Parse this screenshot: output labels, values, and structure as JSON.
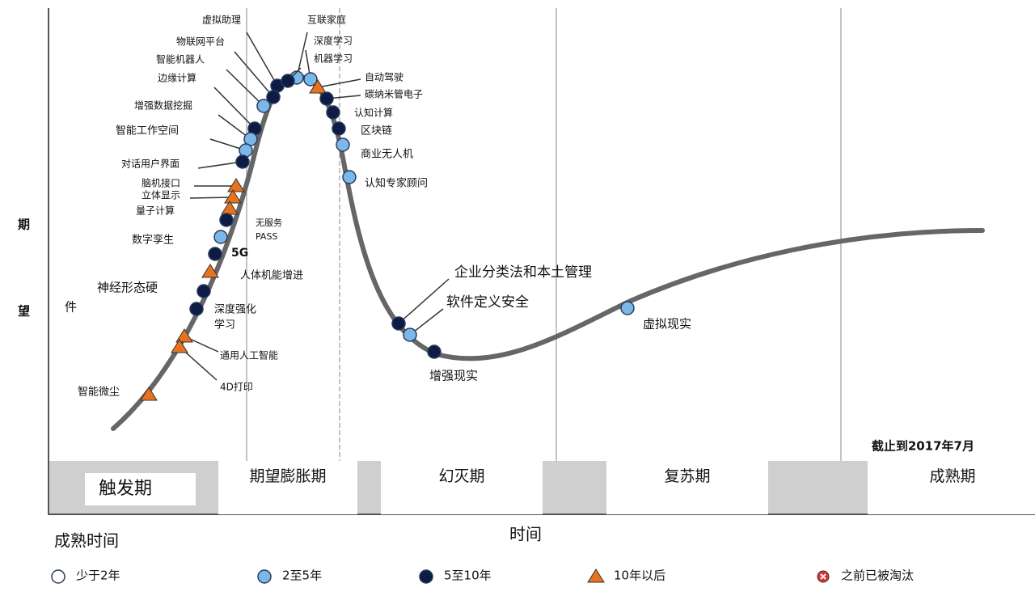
{
  "y_axis_label": [
    "期",
    "望"
  ],
  "x_axis_label": "时间",
  "note": "截止到2017年7月",
  "phases": [
    "触发期",
    "期望膨胀期",
    "幻灭期",
    "复苏期",
    "成熟期"
  ],
  "legend": {
    "title": "成熟时间",
    "items": [
      {
        "label": "少于2年",
        "color": "#ffffff",
        "shape": "circle"
      },
      {
        "label": "2至5年",
        "color": "#7ab8e8",
        "shape": "circle"
      },
      {
        "label": "5至10年",
        "color": "#0d1b45",
        "shape": "circle"
      },
      {
        "label": "10年以后",
        "color": "#e8731e",
        "shape": "triangle"
      },
      {
        "label": "之前已被淘汰",
        "color": "#e03030",
        "shape": "cross"
      }
    ]
  },
  "technologies": [
    {
      "lines": [
        "虚拟助理"
      ],
      "color": "#0d1b45",
      "shape": "circle"
    },
    {
      "lines": [
        "物联网平台"
      ],
      "color": "#0d1b45",
      "shape": "circle"
    },
    {
      "lines": [
        "智能机器人"
      ],
      "color": "#7ab8e8",
      "shape": "circle"
    },
    {
      "lines": [
        "边缘计算"
      ],
      "color": "#0d1b45",
      "shape": "circle"
    },
    {
      "lines": [
        "增强数据挖掘"
      ],
      "color": "#7ab8e8",
      "shape": "circle"
    },
    {
      "lines": [
        "智能工作空间"
      ],
      "color": "#7ab8e8",
      "shape": "circle"
    },
    {
      "lines": [
        "对话用户界面"
      ],
      "color": "#0d1b45",
      "shape": "circle"
    },
    {
      "lines": [
        "脑机接口"
      ],
      "color": "#e8731e",
      "shape": "triangle"
    },
    {
      "lines": [
        "立体显示"
      ],
      "color": "#e8731e",
      "shape": "triangle"
    },
    {
      "lines": [
        "量子计算"
      ],
      "color": "#e8731e",
      "shape": "triangle"
    },
    {
      "lines": [
        "数字孪生"
      ],
      "color": "#0d1b45",
      "shape": "circle"
    },
    {
      "lines": [
        "无服务",
        "PASS"
      ],
      "color": "#7ab8e8",
      "shape": "circle"
    },
    {
      "lines": [
        "5G"
      ],
      "color": "#0d1b45",
      "shape": "circle"
    },
    {
      "lines": [
        "人体机能增进"
      ],
      "color": "#e8731e",
      "shape": "triangle"
    },
    {
      "lines": [
        "神经形态硬",
        "件"
      ],
      "color": "#0d1b45",
      "shape": "circle"
    },
    {
      "lines": [
        "深度强化",
        "学习"
      ],
      "color": "#0d1b45",
      "shape": "circle"
    },
    {
      "lines": [
        "通用人工智能"
      ],
      "color": "#e8731e",
      "shape": "triangle"
    },
    {
      "lines": [
        "4D打印"
      ],
      "color": "#e8731e",
      "shape": "triangle"
    },
    {
      "lines": [
        "智能微尘"
      ],
      "color": "#e8731e",
      "shape": "triangle"
    },
    {
      "lines": [
        "互联家庭"
      ],
      "color": "#7ab8e8",
      "shape": "circle"
    },
    {
      "lines": [
        "深度学习"
      ],
      "color": "#7ab8e8",
      "shape": "circle"
    },
    {
      "lines": [
        "机器学习"
      ],
      "color": "#0d1b45",
      "shape": "circle"
    },
    {
      "lines": [
        "自动驾驶"
      ],
      "color": "#e8731e",
      "shape": "triangle"
    },
    {
      "lines": [
        "碳纳米管电子"
      ],
      "color": "#0d1b45",
      "shape": "circle"
    },
    {
      "lines": [
        "认知计算"
      ],
      "color": "#0d1b45",
      "shape": "circle"
    },
    {
      "lines": [
        "区块链"
      ],
      "color": "#0d1b45",
      "shape": "circle"
    },
    {
      "lines": [
        "商业无人机"
      ],
      "color": "#7ab8e8",
      "shape": "circle"
    },
    {
      "lines": [
        "认知专家顾问"
      ],
      "color": "#7ab8e8",
      "shape": "circle"
    },
    {
      "lines": [
        "企业分类法和本土管理"
      ],
      "color": "#0d1b45",
      "shape": "circle"
    },
    {
      "lines": [
        "软件定义安全"
      ],
      "color": "#7ab8e8",
      "shape": "circle"
    },
    {
      "lines": [
        "增强现实"
      ],
      "color": "#0d1b45",
      "shape": "circle"
    },
    {
      "lines": [
        "虚拟现实"
      ],
      "color": "#7ab8e8",
      "shape": "circle"
    }
  ]
}
